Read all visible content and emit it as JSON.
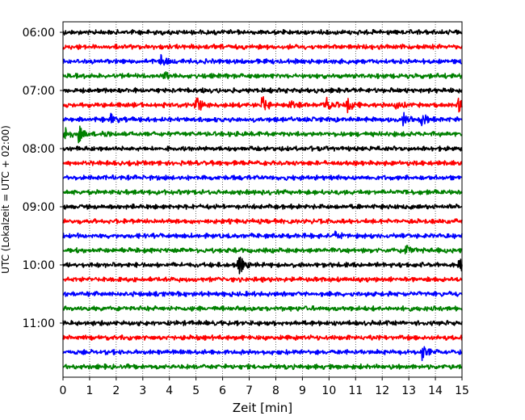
{
  "chart_data": {
    "type": "line",
    "title": "",
    "xlabel": "Zeit  [min]",
    "ylabel": "UTC (Lokalzeit = UTC + 02:00)",
    "xlim": [
      0,
      15
    ],
    "x_ticks": [
      "0",
      "1",
      "2",
      "3",
      "4",
      "5",
      "6",
      "7",
      "8",
      "9",
      "10",
      "11",
      "12",
      "13",
      "14",
      "15"
    ],
    "y_ticks": [
      "06:00",
      "07:00",
      "08:00",
      "09:00",
      "10:00",
      "11:00"
    ],
    "trace_start": "06:00",
    "trace_interval_min": 15,
    "trace_count": 24,
    "trace_colors": [
      "#000000",
      "#ff0000",
      "#0000ff",
      "#008000"
    ],
    "grid": "vertical dotted lines at each minute",
    "events": [
      {
        "trace": 2,
        "t": 3.7,
        "amp": 0.45
      },
      {
        "trace": 3,
        "t": 3.8,
        "amp": 0.25
      },
      {
        "trace": 5,
        "t": 5.0,
        "amp": 0.8
      },
      {
        "trace": 5,
        "t": 7.5,
        "amp": 0.65
      },
      {
        "trace": 5,
        "t": 8.5,
        "amp": 0.3
      },
      {
        "trace": 5,
        "t": 9.9,
        "amp": 0.6
      },
      {
        "trace": 5,
        "t": 10.7,
        "amp": 0.5
      },
      {
        "trace": 5,
        "t": 12.5,
        "amp": 0.35
      },
      {
        "trace": 5,
        "t": 14.9,
        "amp": 0.55
      },
      {
        "trace": 6,
        "t": 1.8,
        "amp": 0.35
      },
      {
        "trace": 6,
        "t": 12.8,
        "amp": 0.45
      },
      {
        "trace": 6,
        "t": 13.5,
        "amp": 0.5
      },
      {
        "trace": 7,
        "t": 0.1,
        "amp": 0.45
      },
      {
        "trace": 7,
        "t": 0.6,
        "amp": 0.6
      },
      {
        "trace": 7,
        "t": 1.5,
        "amp": 0.3
      },
      {
        "trace": 16,
        "t": 6.6,
        "amp": 0.75
      },
      {
        "trace": 16,
        "t": 14.9,
        "amp": 0.55
      },
      {
        "trace": 22,
        "t": 13.5,
        "amp": 0.5
      },
      {
        "trace": 14,
        "t": 10.2,
        "amp": 0.3
      },
      {
        "trace": 15,
        "t": 12.9,
        "amp": 0.4
      }
    ]
  }
}
